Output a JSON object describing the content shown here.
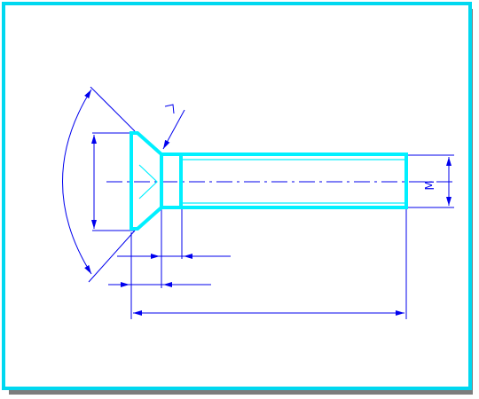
{
  "drawing": {
    "faint_label": "",
    "dim_letter_L": "L",
    "dim_letter_M": "M"
  },
  "colors": {
    "frame": "#00d8f0",
    "outline": "#00f0ff",
    "dimension": "#0000ee",
    "frame_shadow": "#7d7d7d",
    "background": "#ffffff"
  }
}
